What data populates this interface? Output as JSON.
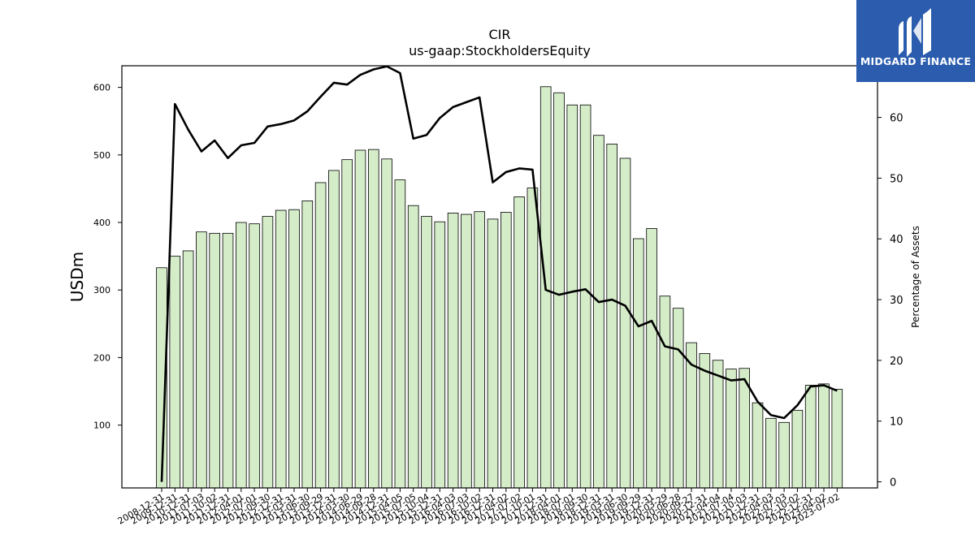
{
  "chart_data": {
    "type": "bar",
    "title": "CIR",
    "subtitle": "us-gaap:StockholdersEquity",
    "ylabel": "USDm",
    "y2label": "Percentage of Assets",
    "ylim": [
      7,
      632
    ],
    "y2lim": [
      -1,
      68.5
    ],
    "yticks": [
      100,
      200,
      300,
      400,
      500,
      600
    ],
    "y2ticks": [
      0,
      10,
      20,
      30,
      40,
      50,
      60
    ],
    "grid": false,
    "bar_color": "#d4ecc8",
    "line_color": "#000000",
    "categories": [
      "2008-12-31",
      "2009-12-31",
      "2010-12-31",
      "2011-07-03",
      "2011-10-02",
      "2011-12-31",
      "2012-04-01",
      "2012-07-01",
      "2012-09-30",
      "2012-12-31",
      "2013-03-31",
      "2013-06-30",
      "2013-09-29",
      "2013-12-31",
      "2014-03-30",
      "2014-06-29",
      "2014-09-28",
      "2014-12-31",
      "2015-04-05",
      "2015-07-05",
      "2015-10-04",
      "2015-12-31",
      "2016-04-03",
      "2016-07-03",
      "2016-10-02",
      "2016-12-31",
      "2017-04-02",
      "2017-07-02",
      "2017-10-01",
      "2017-12-31",
      "2018-04-01",
      "2018-07-01",
      "2018-09-30",
      "2018-12-31",
      "2019-03-31",
      "2019-06-30",
      "2019-09-29",
      "2019-12-31",
      "2020-03-29",
      "2020-06-28",
      "2020-09-27",
      "2020-12-31",
      "2021-04-04",
      "2021-07-04",
      "2021-10-03",
      "2021-12-31",
      "2022-04-03",
      "2022-07-03",
      "2022-10-02",
      "2022-12-31",
      "2023-04-02",
      "2023-07-02"
    ],
    "tick_labels": [
      "2008-12-31",
      "2009-12-31",
      "2010-12-31",
      "2011-07-03",
      "2011-10-02",
      "2011-12-31",
      "2012-04-01",
      "2012-07-01",
      "2012-09-30",
      "2012-12-31",
      "2013-03-31",
      "2013-06-30",
      "2013-09-29",
      "2013-12-31",
      "2014-03-30",
      "2014-06-29",
      "2014-09-28",
      "2014-12-31",
      "2015-04-05",
      "2015-07-05",
      "2015-10-04",
      "2015-12-31",
      "2016-04-03",
      "2016-07-03",
      "2016-10-02",
      "2016-12-31",
      "2017-04-02",
      "2017-07-02",
      "2017-10-01",
      "2017-12-31",
      "2018-04-01",
      "2018-07-01",
      "2018-09-30",
      "2018-12-31",
      "2019-03-31",
      "2019-06-30",
      "2019-09-29",
      "2019-12-31",
      "2020-03-29",
      "2020-06-28",
      "2020-09-27",
      "2020-12-31",
      "2021-04-04",
      "2021-07-04",
      "2021-10-03",
      "2021-12-31",
      "2022-04-03",
      "2022-07-03",
      "2022-10-02",
      "2022-12-31",
      "2023-04-02",
      "2023-07-02"
    ],
    "series": [
      {
        "type": "bar",
        "axis": "left",
        "values": [
          333,
          350,
          358,
          386,
          384,
          384,
          400,
          398,
          409,
          418,
          419,
          432,
          459,
          477,
          493,
          507,
          508,
          494,
          463,
          425,
          409,
          401,
          414,
          412,
          416,
          405,
          415,
          438,
          451,
          601,
          592,
          574,
          574,
          529,
          516,
          495,
          376,
          391,
          291,
          273,
          222,
          206,
          196,
          183,
          184,
          133,
          110,
          104,
          122,
          159,
          161,
          153
        ]
      },
      {
        "type": "line",
        "axis": "right",
        "values": [
          0,
          62.2,
          58.0,
          54.4,
          56.2,
          53.3,
          55.4,
          55.8,
          58.5,
          58.9,
          59.5,
          61.0,
          63.4,
          65.7,
          65.4,
          67.0,
          67.9,
          68.4,
          67.3,
          56.5,
          57.1,
          59.9,
          61.7,
          62.5,
          63.3,
          49.3,
          51.0,
          51.6,
          51.4,
          31.6,
          30.8,
          31.3,
          31.7,
          29.6,
          30.0,
          29.0,
          25.6,
          26.5,
          22.3,
          21.8,
          19.3,
          18.3,
          17.5,
          16.7,
          16.9,
          13.2,
          11.0,
          10.5,
          12.6,
          15.7,
          15.9,
          15.0
        ]
      }
    ]
  },
  "logo": {
    "text": "MIDGARD FINANCE",
    "icon": "midgard-logo-icon",
    "background": "#2b5cae"
  }
}
